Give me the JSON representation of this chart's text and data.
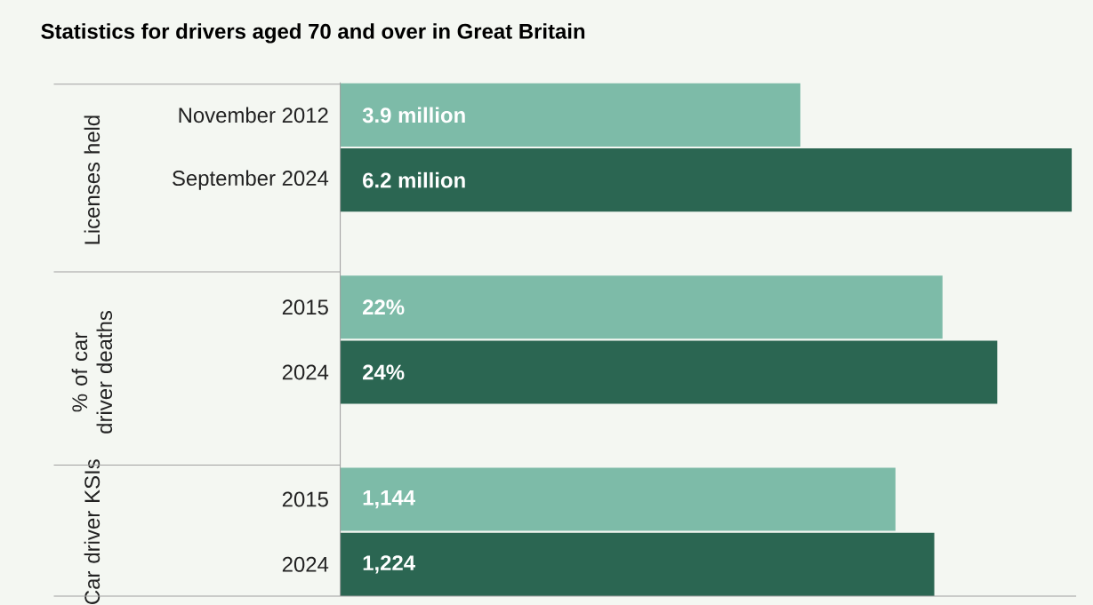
{
  "chart_data": [
    {
      "type": "bar",
      "orientation": "horizontal",
      "title": "Statistics for drivers aged 70 and over in Great Britain",
      "ylabel": "Licenses held",
      "categories": [
        "November 2012",
        "September 2024"
      ],
      "values": [
        3.9,
        6.2
      ],
      "value_labels": [
        "3.9 million",
        "6.2 million"
      ],
      "colors": [
        "#7dbba8",
        "#2b6652"
      ],
      "tick_labels": "y"
    },
    {
      "type": "bar",
      "orientation": "horizontal",
      "ylabel": "% of car driver deaths",
      "categories": [
        "2015",
        "2024"
      ],
      "values": [
        22,
        24
      ],
      "value_labels": [
        "22%",
        "24%"
      ],
      "colors": [
        "#7dbba8",
        "#2b6652"
      ],
      "tick_labels": "y"
    },
    {
      "type": "bar",
      "orientation": "horizontal",
      "ylabel": "Car driver KSIs",
      "categories": [
        "2015",
        "2024"
      ],
      "values": [
        1144,
        1224
      ],
      "value_labels": [
        "1,144",
        "1,224"
      ],
      "colors": [
        "#7dbba8",
        "#2b6652"
      ],
      "tick_labels": "y"
    }
  ]
}
